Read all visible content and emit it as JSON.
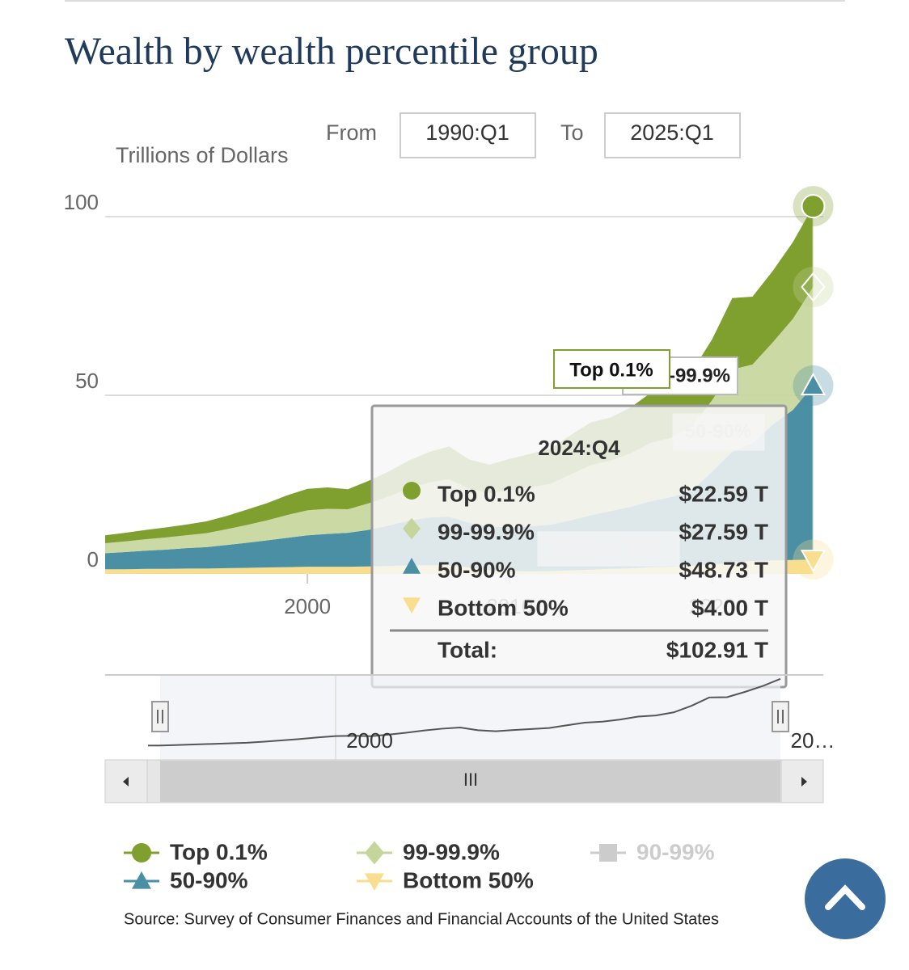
{
  "chart_data": {
    "type": "stacked-area",
    "title": "Wealth by wealth percentile group",
    "y_axis_label": "Trillions of Dollars",
    "range_selector": {
      "from_label": "From",
      "from": "1990:Q1",
      "to_label": "To",
      "to": "2025:Q1"
    },
    "x": [
      1990,
      1991,
      1992,
      1993,
      1994,
      1995,
      1996,
      1997,
      1998,
      1999,
      2000,
      2001,
      2002,
      2003,
      2004,
      2005,
      2006,
      2007,
      2008,
      2009,
      2010,
      2011,
      2012,
      2013,
      2014,
      2015,
      2016,
      2017,
      2018,
      2019,
      2020,
      2021,
      2022,
      2023,
      2024,
      2025
    ],
    "xlim": [
      1990,
      2025.5
    ],
    "xticks": [
      2000,
      2010,
      2020
    ],
    "ylim": [
      0,
      106
    ],
    "yticks": [
      0,
      50,
      100
    ],
    "grid": true,
    "series": [
      {
        "name": "Top 0.1%",
        "color": "#7f9f2f",
        "marker": "circle",
        "values": [
          2.2,
          2.4,
          2.6,
          2.8,
          3.0,
          3.3,
          3.7,
          4.3,
          4.8,
          5.5,
          6.0,
          6.0,
          5.6,
          6.3,
          7.0,
          7.8,
          8.5,
          9.2,
          8.2,
          8.0,
          8.8,
          9.4,
          9.8,
          11.0,
          12.0,
          12.1,
          12.9,
          14.0,
          14.2,
          15.4,
          17.0,
          20.0,
          19.0,
          20.0,
          21.5,
          22.59
        ]
      },
      {
        "name": "99-99.9%",
        "color": "#c5d59b",
        "marker": "diamond",
        "values": [
          2.8,
          3.0,
          3.2,
          3.4,
          3.6,
          3.9,
          4.4,
          5.0,
          5.6,
          6.4,
          7.0,
          7.0,
          6.6,
          7.4,
          8.1,
          9.0,
          9.8,
          10.5,
          9.5,
          9.4,
          10.3,
          10.9,
          11.4,
          12.8,
          14.0,
          14.1,
          15.0,
          16.4,
          16.6,
          17.9,
          20.0,
          23.0,
          22.0,
          23.0,
          25.5,
          27.59
        ]
      },
      {
        "name": "50-90%",
        "color": "#4a8fa3",
        "marker": "triangle",
        "values": [
          4.5,
          4.8,
          5.1,
          5.4,
          5.7,
          6.0,
          6.5,
          7.0,
          7.6,
          8.2,
          8.8,
          9.2,
          9.5,
          10.2,
          11.3,
          12.5,
          13.4,
          13.6,
          12.5,
          12.2,
          12.3,
          12.6,
          13.0,
          14.0,
          15.2,
          16.2,
          17.2,
          18.5,
          19.5,
          21.0,
          26.0,
          31.0,
          33.0,
          38.0,
          42.0,
          48.73
        ]
      },
      {
        "name": "Bottom 50%",
        "color": "#f9de8f",
        "marker": "triangle-down",
        "values": [
          1.3,
          1.3,
          1.4,
          1.4,
          1.5,
          1.5,
          1.6,
          1.7,
          1.8,
          1.9,
          2.0,
          2.0,
          2.0,
          2.1,
          2.2,
          2.4,
          2.4,
          2.4,
          1.8,
          1.0,
          0.8,
          0.7,
          0.8,
          1.0,
          1.2,
          1.4,
          1.6,
          1.9,
          2.0,
          2.3,
          2.6,
          3.2,
          3.6,
          3.8,
          3.9,
          4.0
        ]
      }
    ],
    "hidden_series": [
      {
        "name": "90-99%",
        "color": "#cccccc"
      }
    ],
    "tooltip": {
      "title": "2024:Q4",
      "value_labels": [
        "$22.59 T",
        "$27.59 T",
        "$48.73 T",
        "$4.00 T"
      ],
      "total_label": "Total:",
      "total": "$102.91 T"
    },
    "navigator": {
      "labels": [
        "2000",
        "20…"
      ],
      "scrollbar_label": "III"
    },
    "source": "Source: Survey of Consumer Finances and Financial Accounts of the United States"
  }
}
